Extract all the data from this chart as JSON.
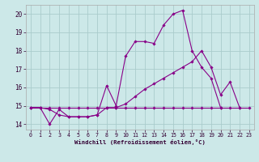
{
  "xlabel": "Windchill (Refroidissement éolien,°C)",
  "bg_color": "#cce8e8",
  "line_color": "#880088",
  "grid_color": "#aacccc",
  "xlim": [
    -0.5,
    23.5
  ],
  "ylim": [
    13.7,
    20.5
  ],
  "yticks": [
    14,
    15,
    16,
    17,
    18,
    19,
    20
  ],
  "xticks": [
    0,
    1,
    2,
    3,
    4,
    5,
    6,
    7,
    8,
    9,
    10,
    11,
    12,
    13,
    14,
    15,
    16,
    17,
    18,
    19,
    20,
    21,
    22,
    23
  ],
  "s1_x": [
    0,
    1,
    2,
    3,
    4,
    5,
    6,
    7,
    8,
    9,
    10,
    11,
    12,
    13,
    14,
    15,
    16,
    17,
    18,
    19,
    20
  ],
  "s1_y": [
    14.9,
    14.9,
    14.0,
    14.8,
    14.4,
    14.4,
    14.4,
    14.5,
    16.1,
    15.0,
    17.7,
    18.5,
    18.5,
    18.4,
    19.4,
    20.0,
    20.2,
    18.0,
    17.1,
    16.5,
    14.9
  ],
  "s2_x": [
    0,
    1,
    2,
    3,
    4,
    5,
    6,
    7,
    8,
    9,
    10,
    11,
    12,
    13,
    14,
    15,
    16,
    17,
    18,
    19,
    20,
    21,
    22
  ],
  "s2_y": [
    14.9,
    14.9,
    14.8,
    14.5,
    14.4,
    14.4,
    14.4,
    14.5,
    14.9,
    14.9,
    15.1,
    15.5,
    15.9,
    16.2,
    16.5,
    16.8,
    17.1,
    17.4,
    18.0,
    17.1,
    15.6,
    16.3,
    14.9
  ],
  "s3_x": [
    0,
    1,
    2,
    3,
    4,
    5,
    6,
    7,
    8,
    9,
    10,
    11,
    12,
    13,
    14,
    15,
    16,
    17,
    18,
    19,
    20,
    21,
    22,
    23
  ],
  "s3_y": [
    14.9,
    14.9,
    14.9,
    14.9,
    14.9,
    14.9,
    14.9,
    14.9,
    14.9,
    14.9,
    14.9,
    14.9,
    14.9,
    14.9,
    14.9,
    14.9,
    14.9,
    14.9,
    14.9,
    14.9,
    14.9,
    14.9,
    14.9,
    14.9
  ]
}
